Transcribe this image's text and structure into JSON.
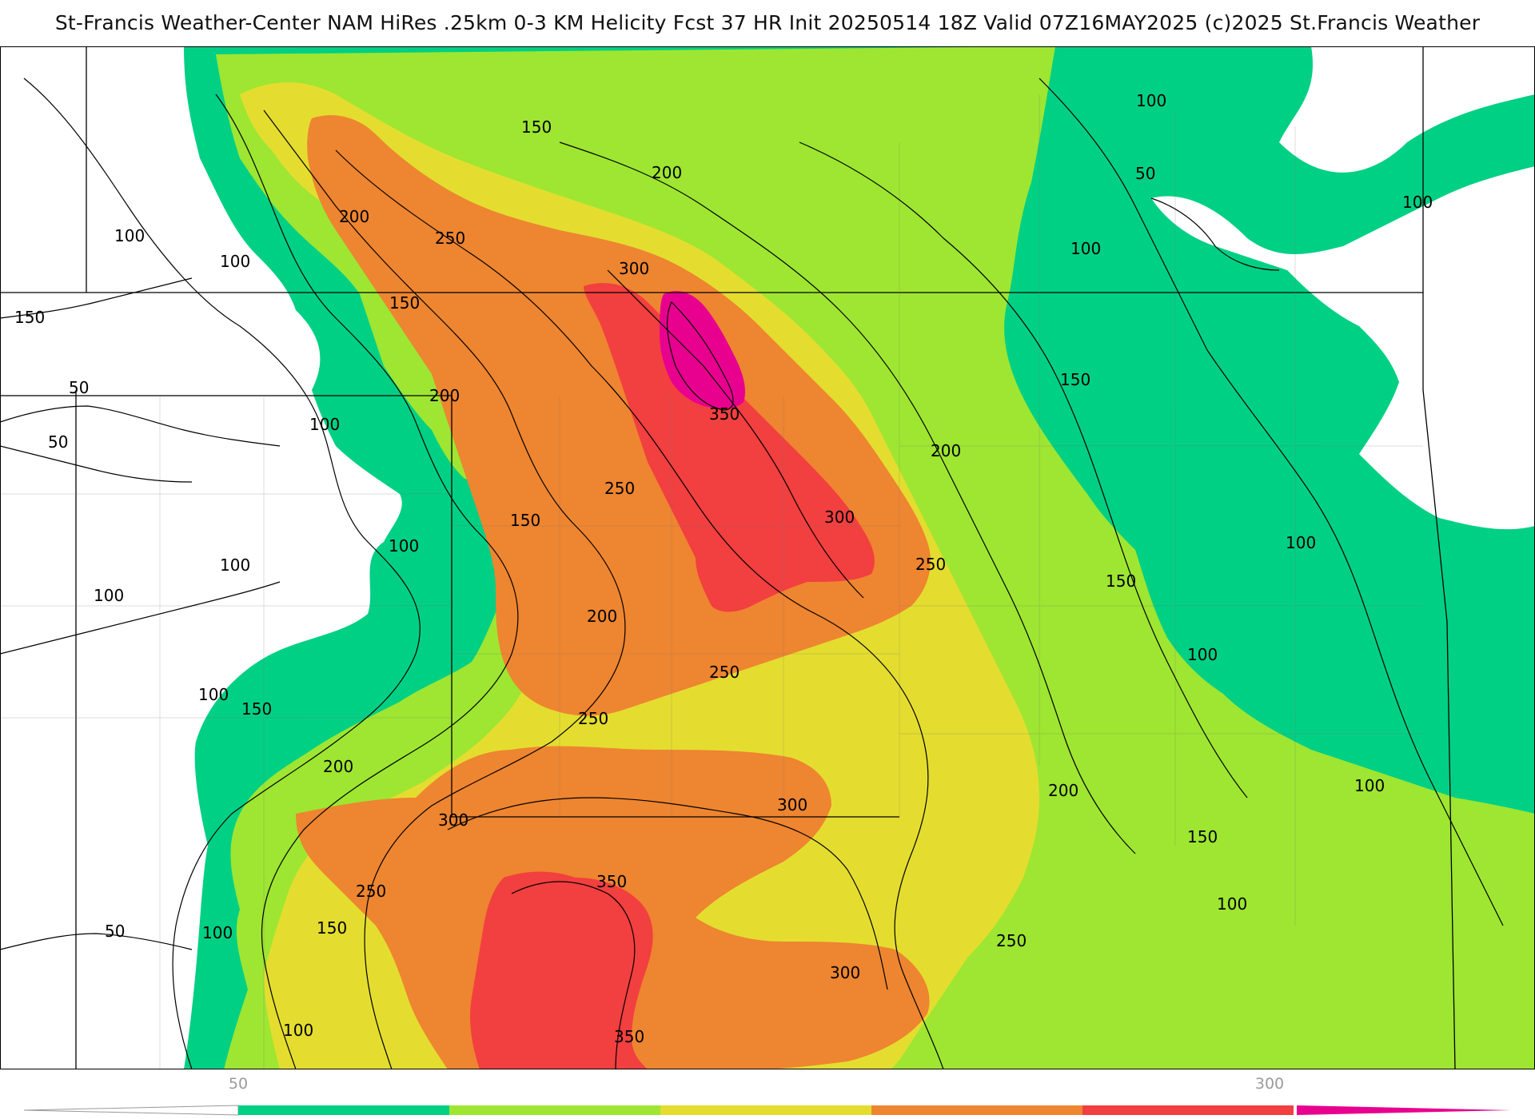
{
  "header": {
    "title": "St-Francis Weather-Center NAM HiRes .25km 0-3 KM Helicity Fcst 37 HR Init 20250514 18Z  Valid 07Z16MAY2025    (c)2025 St.Francis Weather"
  },
  "colorbar": {
    "colors": [
      "#00d084",
      "#9ee631",
      "#e4dd2f",
      "#ee8530",
      "#f23f3f",
      "#e8008f"
    ],
    "tick_labels": [
      "50",
      "300"
    ]
  },
  "contour_labels": [
    "100",
    "100",
    "150",
    "200",
    "250",
    "200",
    "300",
    "150",
    "150",
    "200",
    "50",
    "100",
    "50",
    "350",
    "250",
    "150",
    "200",
    "100",
    "100",
    "100",
    "200",
    "250",
    "300",
    "250",
    "100",
    "250",
    "150",
    "200",
    "300",
    "300",
    "350",
    "250",
    "150",
    "100",
    "50",
    "300",
    "350",
    "100",
    "100",
    "50",
    "100",
    "150",
    "100",
    "150",
    "100",
    "100",
    "200",
    "100",
    "150",
    "100",
    "250"
  ],
  "map_features": {
    "fill_levels_top_to_bottom": [
      "white",
      "50",
      "100",
      "150",
      "200",
      "250",
      "300",
      "350"
    ]
  }
}
